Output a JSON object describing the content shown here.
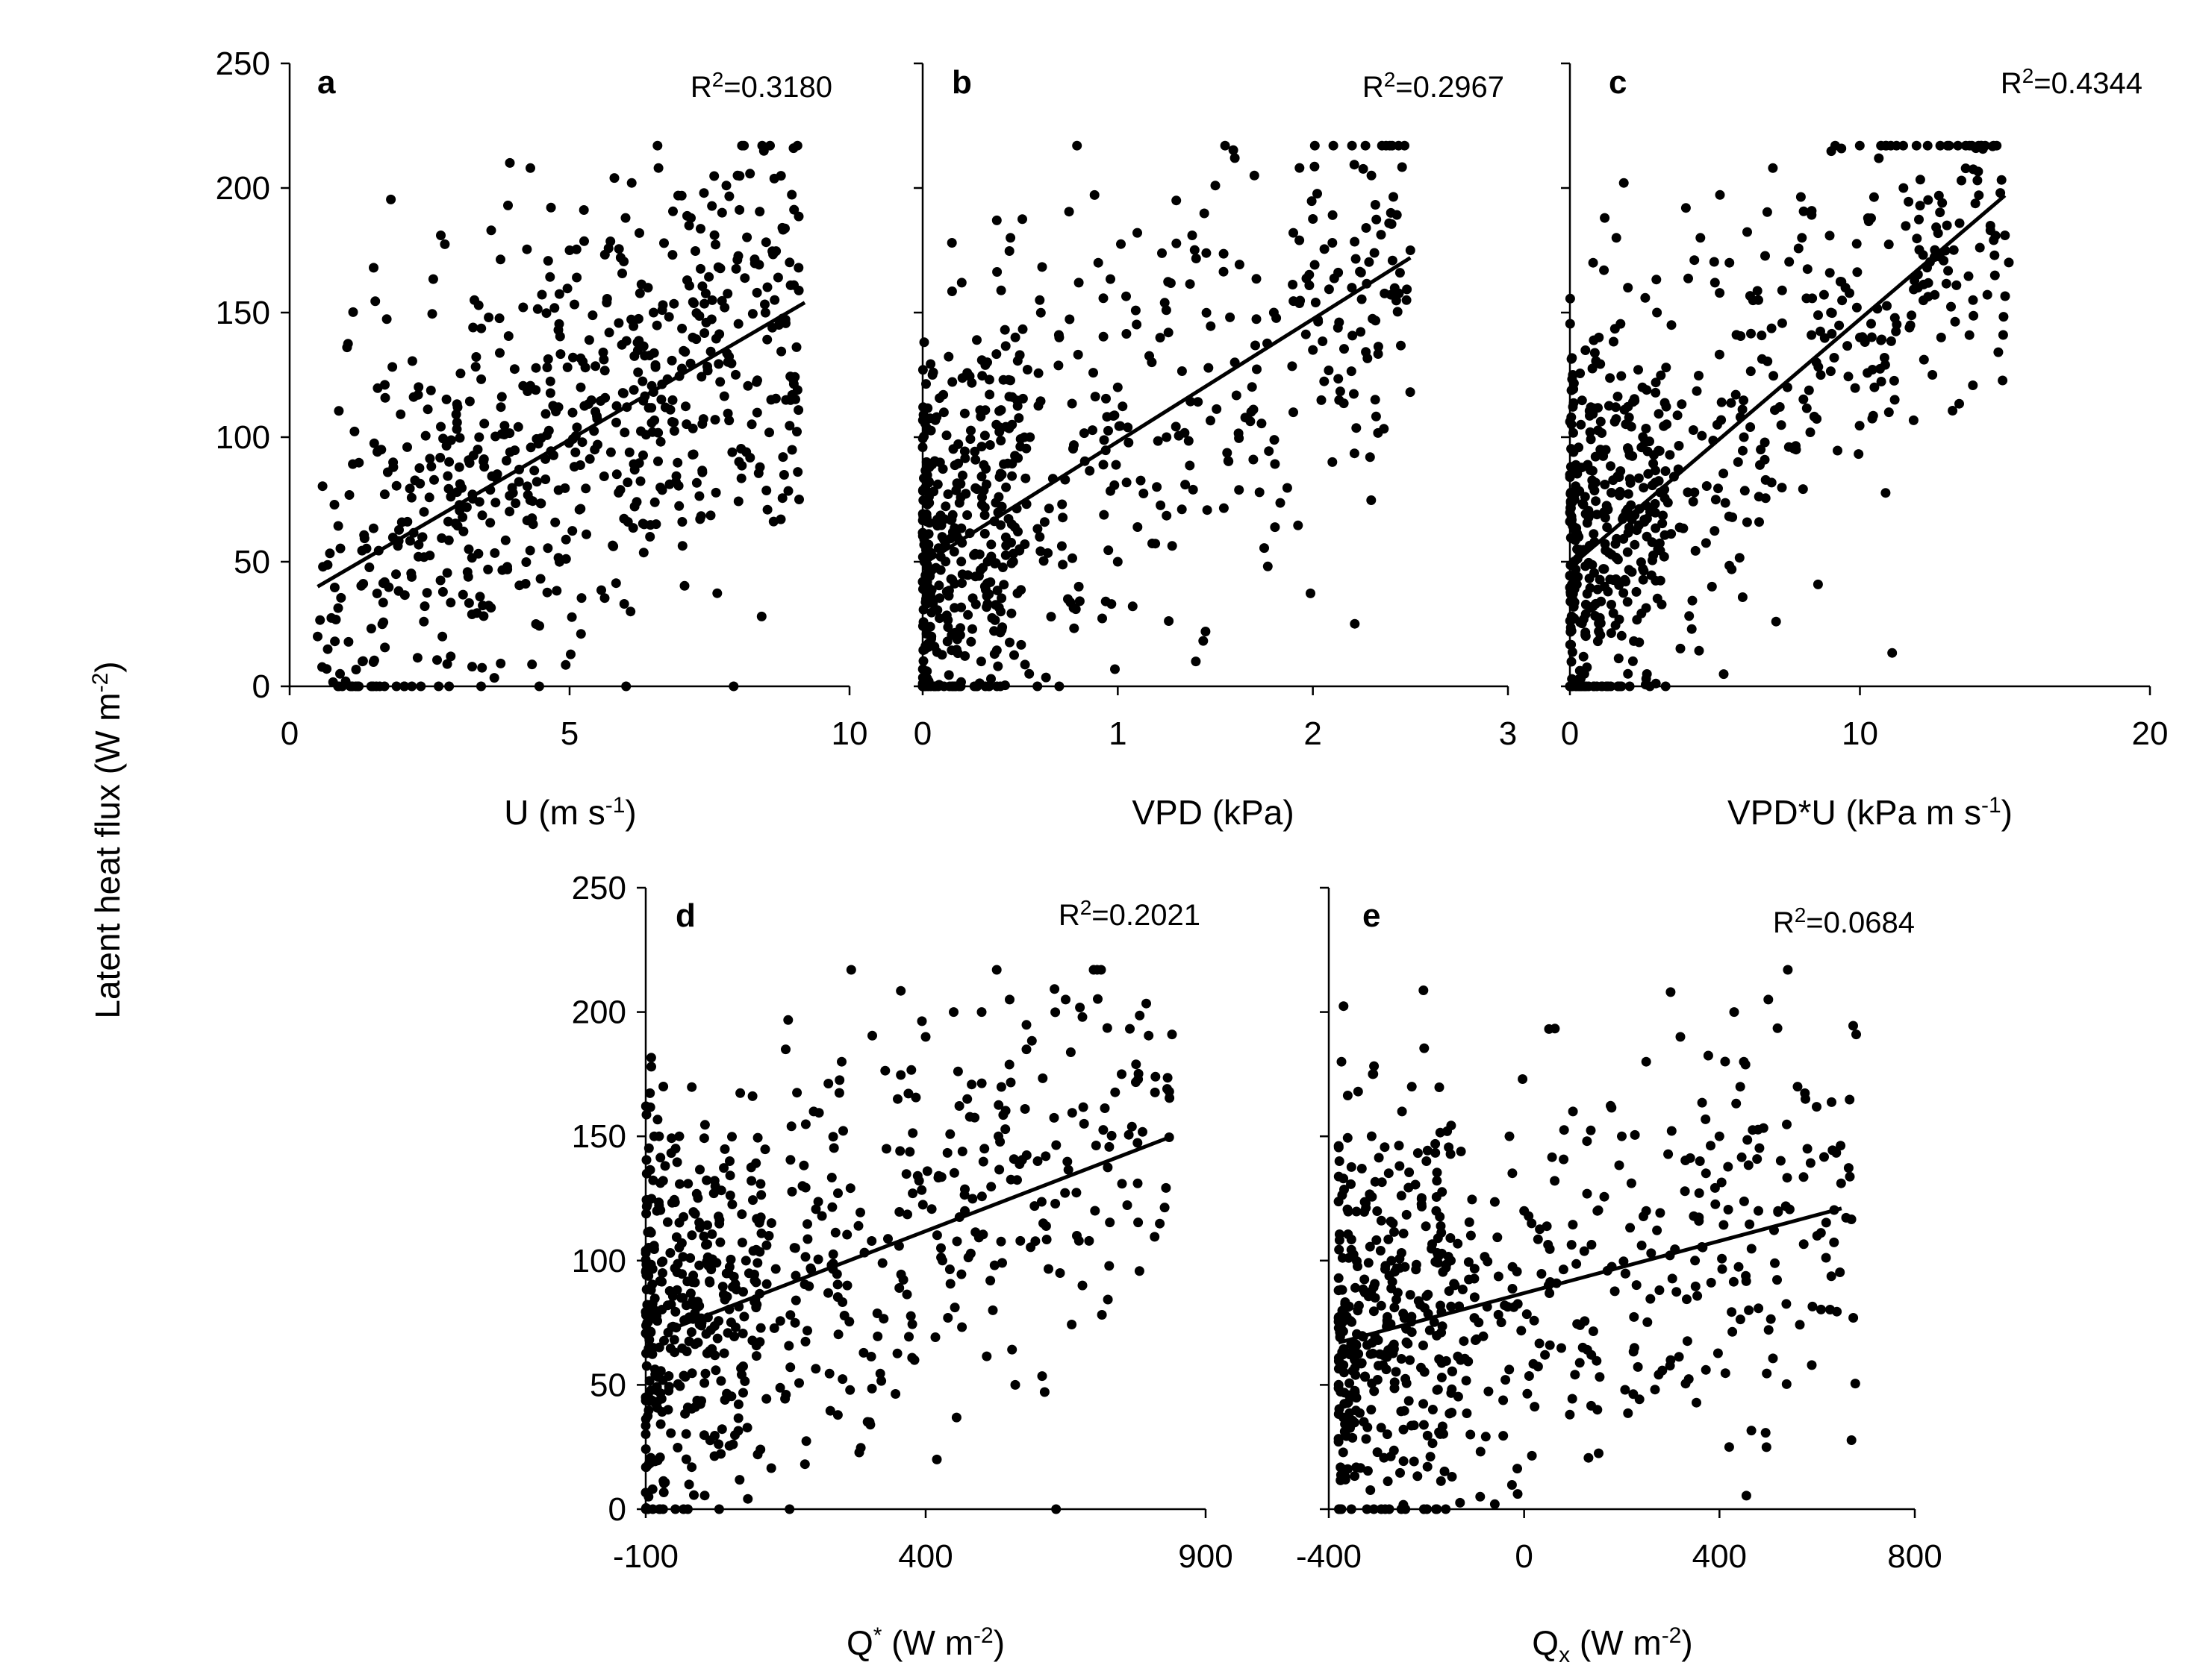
{
  "figure": {
    "ylabel": "Latent heat flux",
    "ylabel_unit_open": " (W m",
    "ylabel_unit_sup": "-2",
    "ylabel_unit_close": ")"
  },
  "chart_data": [
    {
      "id": "a",
      "type": "scatter",
      "letter": "a",
      "r2_prefix": "R",
      "r2_sup": "2",
      "r2_value": "=0.3180",
      "xlabel_main": "U (m s",
      "xlabel_sup": "-1",
      "xlabel_sub": "",
      "xlabel_close": ")",
      "xlim": [
        0,
        10
      ],
      "xticks": [
        0,
        5,
        10
      ],
      "xtick_labels": [
        "0",
        "5",
        "10"
      ],
      "ylim": [
        0,
        250
      ],
      "yticks": [
        0,
        50,
        100,
        150,
        200,
        250
      ],
      "ytick_labels": [
        "0",
        "50",
        "100",
        "150",
        "200",
        "250"
      ],
      "show_y_labels": true,
      "trendline": {
        "x": [
          0.5,
          9.2
        ],
        "y": [
          40,
          154
        ]
      },
      "cloud": {
        "n": 620,
        "x_range": [
          0.5,
          9.1
        ],
        "y_range": [
          0,
          217
        ]
      },
      "points": [
        [
          0.5,
          20
        ],
        [
          0.9,
          5
        ],
        [
          1.0,
          2
        ],
        [
          1.3,
          10
        ],
        [
          1.5,
          168
        ],
        [
          1.7,
          121
        ],
        [
          2.1,
          96
        ],
        [
          2.3,
          52
        ],
        [
          2.7,
          181
        ],
        [
          3.0,
          112
        ],
        [
          3.3,
          155
        ],
        [
          3.6,
          183
        ],
        [
          3.9,
          193
        ],
        [
          4.3,
          208
        ],
        [
          4.4,
          25
        ],
        [
          4.8,
          143
        ],
        [
          5.0,
          175
        ],
        [
          5.2,
          120
        ],
        [
          5.6,
          134
        ],
        [
          5.8,
          204
        ],
        [
          6.0,
          188
        ],
        [
          6.2,
          74
        ],
        [
          6.4,
          160
        ],
        [
          6.8,
          111
        ],
        [
          7.1,
          163
        ],
        [
          7.4,
          198
        ],
        [
          7.6,
          107
        ],
        [
          7.8,
          201
        ],
        [
          8.0,
          205
        ],
        [
          8.4,
          88
        ],
        [
          8.6,
          115
        ],
        [
          8.8,
          184
        ],
        [
          9.0,
          216
        ],
        [
          9.1,
          75
        ],
        [
          3.4,
          36
        ],
        [
          5.3,
          61
        ],
        [
          6.9,
          82
        ],
        [
          2.4,
          70
        ],
        [
          4.1,
          87
        ],
        [
          1.9,
          45
        ],
        [
          3.2,
          55
        ],
        [
          5.5,
          97
        ],
        [
          7.2,
          140
        ],
        [
          4.6,
          128
        ],
        [
          6.5,
          150
        ]
      ]
    },
    {
      "id": "b",
      "type": "scatter",
      "letter": "b",
      "r2_prefix": "R",
      "r2_sup": "2",
      "r2_value": "=0.2967",
      "xlabel_main": "VPD (kPa",
      "xlabel_sup": "",
      "xlabel_sub": "",
      "xlabel_close": ")",
      "xlim": [
        0,
        3
      ],
      "xticks": [
        0,
        1,
        2,
        3
      ],
      "xtick_labels": [
        "0",
        "1",
        "2",
        "3"
      ],
      "ylim": [
        0,
        250
      ],
      "yticks": [
        0,
        50,
        100,
        150,
        200,
        250
      ],
      "ytick_labels": [
        "",
        "",
        "",
        "",
        "",
        ""
      ],
      "show_y_labels": false,
      "trendline": {
        "x": [
          0.0,
          2.5
        ],
        "y": [
          49,
          172
        ]
      },
      "cloud": {
        "n": 620,
        "x_range": [
          0.0,
          2.5
        ],
        "y_range": [
          0,
          217
        ]
      },
      "points": [
        [
          0.02,
          90
        ],
        [
          0.05,
          125
        ],
        [
          0.1,
          60
        ],
        [
          0.15,
          178
        ],
        [
          0.2,
          162
        ],
        [
          0.3,
          10
        ],
        [
          0.35,
          3
        ],
        [
          0.38,
          187
        ],
        [
          0.45,
          180
        ],
        [
          0.55,
          100
        ],
        [
          0.6,
          155
        ],
        [
          0.7,
          140
        ],
        [
          0.8,
          162
        ],
        [
          0.9,
          170
        ],
        [
          1.0,
          120
        ],
        [
          1.1,
          182
        ],
        [
          1.2,
          80
        ],
        [
          1.3,
          195
        ],
        [
          1.4,
          10
        ],
        [
          1.5,
          201
        ],
        [
          1.55,
          217
        ],
        [
          1.6,
          212
        ],
        [
          1.7,
          205
        ],
        [
          1.8,
          150
        ],
        [
          1.9,
          182
        ],
        [
          2.0,
          135
        ],
        [
          2.1,
          178
        ],
        [
          2.2,
          160
        ],
        [
          2.3,
          205
        ],
        [
          2.4,
          190
        ],
        [
          2.5,
          175
        ],
        [
          2.48,
          155
        ],
        [
          2.1,
          90
        ],
        [
          1.45,
          22
        ],
        [
          1.0,
          50
        ],
        [
          0.8,
          40
        ],
        [
          0.6,
          60
        ],
        [
          0.4,
          30
        ],
        [
          1.25,
          100
        ],
        [
          1.6,
          130
        ],
        [
          1.9,
          110
        ],
        [
          0.7,
          0
        ]
      ]
    },
    {
      "id": "c",
      "type": "scatter",
      "letter": "c",
      "r2_prefix": "R",
      "r2_sup": "2",
      "r2_value": "=0.4344",
      "xlabel_main": "VPD*U (kPa m s",
      "xlabel_sup": "-1",
      "xlabel_sub": "",
      "xlabel_close": ")",
      "xlim": [
        0,
        20
      ],
      "xticks": [
        0,
        10,
        20
      ],
      "xtick_labels": [
        "0",
        "10",
        "20"
      ],
      "ylim": [
        0,
        250
      ],
      "yticks": [
        0,
        50,
        100,
        150,
        200,
        250
      ],
      "ytick_labels": [
        "",
        "",
        "",
        "",
        "",
        ""
      ],
      "show_y_labels": false,
      "trendline": {
        "x": [
          0.0,
          15.0
        ],
        "y": [
          48,
          197
        ]
      },
      "cloud": {
        "n": 620,
        "x_range": [
          0.0,
          15.2
        ],
        "y_range": [
          0,
          217
        ]
      },
      "points": [
        [
          0.1,
          125
        ],
        [
          0.3,
          60
        ],
        [
          0.5,
          5
        ],
        [
          0.8,
          170
        ],
        [
          1.0,
          140
        ],
        [
          1.2,
          188
        ],
        [
          1.6,
          180
        ],
        [
          2.0,
          160
        ],
        [
          2.5,
          120
        ],
        [
          3.0,
          150
        ],
        [
          3.5,
          145
        ],
        [
          4.0,
          192
        ],
        [
          4.5,
          180
        ],
        [
          5.0,
          162
        ],
        [
          5.5,
          170
        ],
        [
          6.0,
          100
        ],
        [
          6.5,
          155
        ],
        [
          7.0,
          208
        ],
        [
          7.5,
          120
        ],
        [
          8.0,
          180
        ],
        [
          8.5,
          130
        ],
        [
          9.0,
          150
        ],
        [
          9.5,
          160
        ],
        [
          10.0,
          140
        ],
        [
          10.5,
          120
        ],
        [
          11.0,
          110
        ],
        [
          11.5,
          200
        ],
        [
          12.0,
          160
        ],
        [
          12.5,
          125
        ],
        [
          13.0,
          185
        ],
        [
          13.5,
          203
        ],
        [
          14.0,
          216
        ],
        [
          14.5,
          183
        ],
        [
          15.0,
          181
        ],
        [
          2.0,
          5
        ],
        [
          4.2,
          23
        ],
        [
          5.8,
          90
        ],
        [
          7.8,
          95
        ],
        [
          11.2,
          115
        ],
        [
          12.8,
          140
        ],
        [
          13.9,
          155
        ]
      ]
    },
    {
      "id": "d",
      "type": "scatter",
      "letter": "d",
      "r2_prefix": "R",
      "r2_sup": "2",
      "r2_value": "=0.2021",
      "xlabel_main": "Q",
      "xlabel_sup": "*",
      "xlabel_sub": "",
      "xlabel_close": " (W m-2)",
      "xlabel_unit_main": " (W m",
      "xlabel_unit_sup": "-2",
      "xlabel_unit_close": ")",
      "xlim": [
        -100,
        900
      ],
      "xticks": [
        -100,
        400,
        900
      ],
      "xtick_labels": [
        "-100",
        "400",
        "900"
      ],
      "ylim": [
        0,
        250
      ],
      "yticks": [
        0,
        50,
        100,
        150,
        200,
        250
      ],
      "ytick_labels": [
        "0",
        "50",
        "100",
        "150",
        "200",
        "250"
      ],
      "show_y_labels": true,
      "trendline": {
        "x": [
          -60,
          840
        ],
        "y": [
          72,
          150
        ]
      },
      "cloud": {
        "n": 620,
        "x_range": [
          -100,
          840
        ],
        "y_range": [
          0,
          217
        ]
      },
      "points": [
        [
          -95,
          5
        ],
        [
          -90,
          178
        ],
        [
          -85,
          150
        ],
        [
          -80,
          120
        ],
        [
          -70,
          95
        ],
        [
          -60,
          40
        ],
        [
          -40,
          150
        ],
        [
          0,
          75
        ],
        [
          50,
          140
        ],
        [
          100,
          22
        ],
        [
          150,
          185
        ],
        [
          200,
          160
        ],
        [
          250,
          180
        ],
        [
          300,
          35
        ],
        [
          350,
          165
        ],
        [
          400,
          190
        ],
        [
          420,
          20
        ],
        [
          450,
          200
        ],
        [
          500,
          200
        ],
        [
          520,
          80
        ],
        [
          550,
          205
        ],
        [
          580,
          185
        ],
        [
          600,
          140
        ],
        [
          650,
          205
        ],
        [
          680,
          198
        ],
        [
          700,
          217
        ],
        [
          750,
          175
        ],
        [
          840,
          191
        ],
        [
          640,
          95
        ],
        [
          560,
          50
        ],
        [
          470,
          120
        ],
        [
          380,
          60
        ],
        [
          260,
          90
        ],
        [
          180,
          130
        ],
        [
          120,
          110
        ],
        [
          330,
          145
        ],
        [
          430,
          100
        ],
        [
          530,
          150
        ],
        [
          610,
          115
        ],
        [
          680,
          90
        ]
      ]
    },
    {
      "id": "e",
      "type": "scatter",
      "letter": "e",
      "r2_prefix": "R",
      "r2_sup": "2",
      "r2_value": "=0.0684",
      "xlabel_main": "Q",
      "xlabel_sup": "",
      "xlabel_sub": "x",
      "xlabel_close": " (W m-2)",
      "xlabel_unit_main": " (W m",
      "xlabel_unit_sup": "-2",
      "xlabel_unit_close": ")",
      "xlim": [
        -400,
        800
      ],
      "xticks": [
        -400,
        0,
        400,
        800
      ],
      "xtick_labels": [
        "-400",
        "0",
        "400",
        "800"
      ],
      "ylim": [
        0,
        250
      ],
      "yticks": [
        0,
        50,
        100,
        150,
        200,
        250
      ],
      "ytick_labels": [
        "",
        "",
        "",
        "",
        "",
        ""
      ],
      "show_y_labels": false,
      "trendline": {
        "x": [
          -380,
          650
        ],
        "y": [
          67,
          121
        ]
      },
      "cloud": {
        "n": 620,
        "x_range": [
          -380,
          680
        ],
        "y_range": [
          0,
          217
        ]
      },
      "points": [
        [
          -370,
          133
        ],
        [
          -340,
          168
        ],
        [
          -310,
          175
        ],
        [
          -280,
          75
        ],
        [
          -250,
          160
        ],
        [
          -230,
          170
        ],
        [
          -200,
          140
        ],
        [
          -180,
          120
        ],
        [
          -150,
          100
        ],
        [
          -130,
          60
        ],
        [
          -110,
          30
        ],
        [
          -90,
          5
        ],
        [
          -60,
          2
        ],
        [
          -30,
          150
        ],
        [
          0,
          120
        ],
        [
          50,
          90
        ],
        [
          100,
          160
        ],
        [
          150,
          120
        ],
        [
          200,
          150
        ],
        [
          250,
          180
        ],
        [
          300,
          208
        ],
        [
          320,
          190
        ],
        [
          350,
          100
        ],
        [
          400,
          150
        ],
        [
          430,
          200
        ],
        [
          450,
          180
        ],
        [
          500,
          205
        ],
        [
          520,
          120
        ],
        [
          540,
          217
        ],
        [
          560,
          170
        ],
        [
          580,
          145
        ],
        [
          600,
          110
        ],
        [
          680,
          191
        ],
        [
          420,
          25
        ],
        [
          300,
          60
        ],
        [
          150,
          40
        ],
        [
          460,
          80
        ],
        [
          250,
          120
        ],
        [
          120,
          65
        ],
        [
          360,
          140
        ]
      ]
    }
  ]
}
